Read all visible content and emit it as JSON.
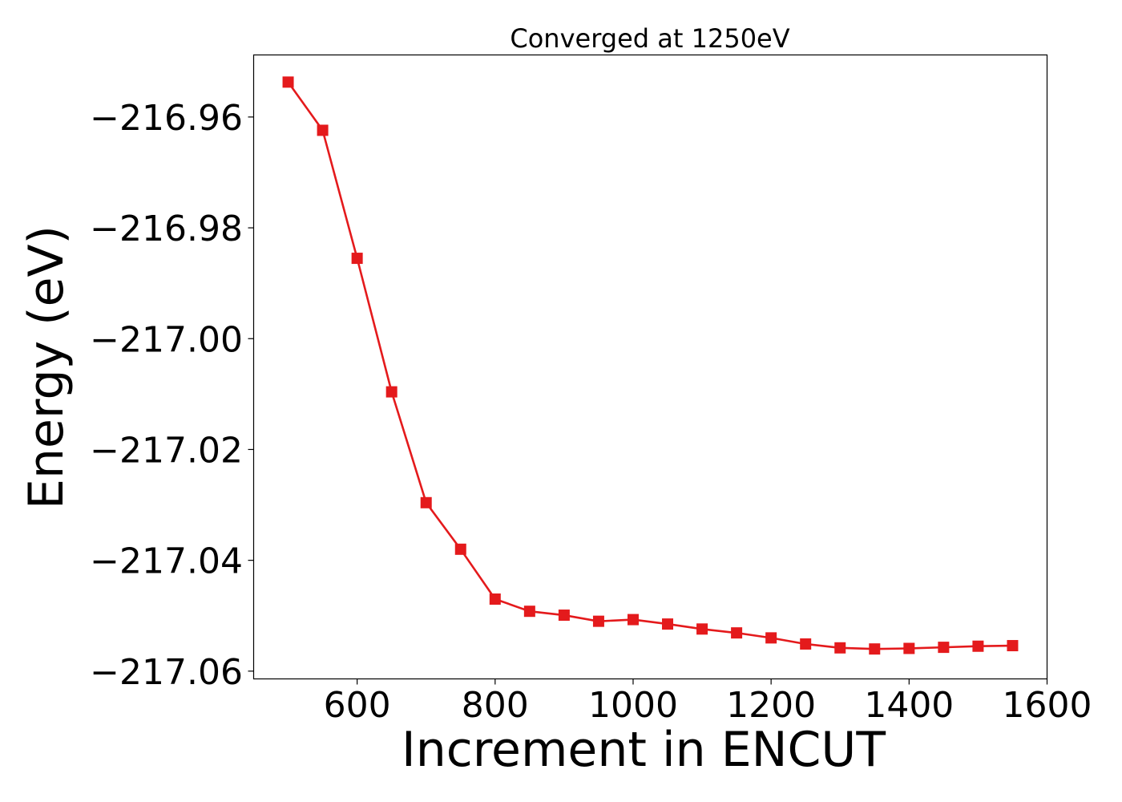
{
  "chart_data": {
    "type": "line",
    "title": "Converged at 1250eV",
    "xlabel": "Increment in ENCUT",
    "ylabel": "Energy (eV)",
    "xlim": [
      450,
      1600
    ],
    "ylim": [
      -217.0614,
      -216.9488
    ],
    "xticks": [
      600,
      800,
      1000,
      1200,
      1400,
      1600
    ],
    "xtick_labels": [
      "600",
      "800",
      "1000",
      "1200",
      "1400",
      "1600"
    ],
    "yticks": [
      -216.96,
      -216.98,
      -217.0,
      -217.02,
      -217.04,
      -217.06
    ],
    "ytick_labels": [
      "−216.96",
      "−216.98",
      "−217.00",
      "−217.02",
      "−217.04",
      "−217.06"
    ],
    "grid": false,
    "legend": false,
    "series": [
      {
        "color": "#e41a1c",
        "marker": "square",
        "x": [
          500,
          550,
          600,
          650,
          700,
          750,
          800,
          850,
          900,
          950,
          1000,
          1050,
          1100,
          1150,
          1200,
          1250,
          1300,
          1350,
          1400,
          1450,
          1500,
          1550
        ],
        "y": [
          -216.9537,
          -216.9624,
          -216.9855,
          -217.0096,
          -217.0296,
          -217.038,
          -217.047,
          -217.0492,
          -217.0499,
          -217.051,
          -217.0507,
          -217.0515,
          -217.0524,
          -217.0531,
          -217.054,
          -217.0551,
          -217.0558,
          -217.056,
          -217.0559,
          -217.0557,
          -217.0555,
          -217.0554
        ]
      }
    ]
  }
}
